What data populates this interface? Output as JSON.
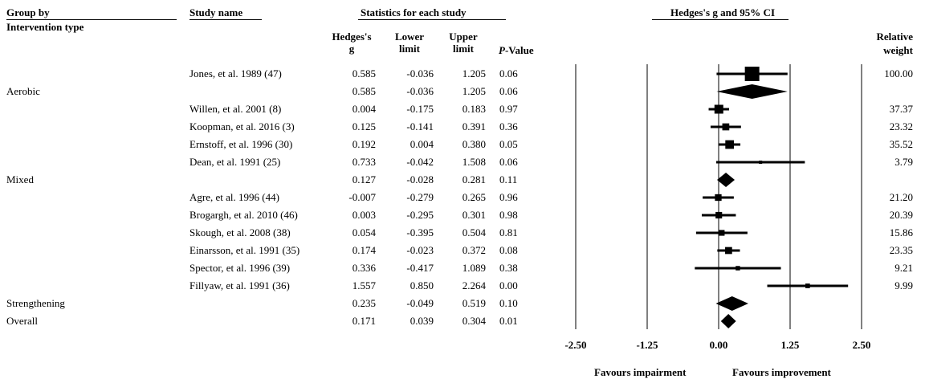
{
  "headers": {
    "group_by": "Group by",
    "intervention_type": "Intervention type",
    "study_name": "Study name",
    "statistics": "Statistics for each study",
    "hedges_line1": "Hedges's",
    "hedges_line2": "g",
    "lower_line1": "Lower",
    "lower_line2": "limit",
    "upper_line1": "Upper",
    "upper_line2": "limit",
    "p_letter": "P",
    "p_rest": "-Value",
    "plot_title": "Hedges's g and 95% CI",
    "weight_line1": "Relative",
    "weight_line2": "weight"
  },
  "favours": {
    "left": "Favours impairment",
    "right": "Favours improvement"
  },
  "chart_data": {
    "type": "forest",
    "title": "Hedges's g and 95% CI",
    "xlabel": "",
    "xlim": [
      -2.5,
      2.5
    ],
    "xticks": [
      "-2.50",
      "-1.25",
      "0.00",
      "1.25",
      "2.50"
    ],
    "tick_values": [
      -2.5,
      -1.25,
      0,
      1.25,
      2.5
    ],
    "grid": false,
    "rows": [
      {
        "kind": "study",
        "group": "",
        "study": "Jones, et al. 1989 (47)",
        "g": "0.585",
        "lower": "-0.036",
        "upper": "1.205",
        "p": "0.06",
        "weight": "100.00",
        "gv": 0.585,
        "lv": -0.036,
        "uv": 1.205,
        "wv": 100.0
      },
      {
        "kind": "summary",
        "group": "Aerobic",
        "study": "",
        "g": "0.585",
        "lower": "-0.036",
        "upper": "1.205",
        "p": "0.06",
        "weight": "",
        "gv": 0.585,
        "lv": -0.036,
        "uv": 1.205
      },
      {
        "kind": "study",
        "group": "",
        "study": "Willen, et al. 2001 (8)",
        "g": "0.004",
        "lower": "-0.175",
        "upper": "0.183",
        "p": "0.97",
        "weight": "37.37",
        "gv": 0.004,
        "lv": -0.175,
        "uv": 0.183,
        "wv": 37.37
      },
      {
        "kind": "study",
        "group": "",
        "study": "Koopman, et al. 2016 (3)",
        "g": "0.125",
        "lower": "-0.141",
        "upper": "0.391",
        "p": "0.36",
        "weight": "23.32",
        "gv": 0.125,
        "lv": -0.141,
        "uv": 0.391,
        "wv": 23.32
      },
      {
        "kind": "study",
        "group": "",
        "study": "Ernstoff, et al. 1996 (30)",
        "g": "0.192",
        "lower": "0.004",
        "upper": "0.380",
        "p": "0.05",
        "weight": "35.52",
        "gv": 0.192,
        "lv": 0.004,
        "uv": 0.38,
        "wv": 35.52
      },
      {
        "kind": "study",
        "group": "",
        "study": "Dean, et al. 1991 (25)",
        "g": "0.733",
        "lower": "-0.042",
        "upper": "1.508",
        "p": "0.06",
        "weight": "3.79",
        "gv": 0.733,
        "lv": -0.042,
        "uv": 1.508,
        "wv": 3.79
      },
      {
        "kind": "summary",
        "group": "Mixed",
        "study": "",
        "g": "0.127",
        "lower": "-0.028",
        "upper": "0.281",
        "p": "0.11",
        "weight": "",
        "gv": 0.127,
        "lv": -0.028,
        "uv": 0.281
      },
      {
        "kind": "study",
        "group": "",
        "study": "Agre, et al. 1996 (44)",
        "g": "-0.007",
        "lower": "-0.279",
        "upper": "0.265",
        "p": "0.96",
        "weight": "21.20",
        "gv": -0.007,
        "lv": -0.279,
        "uv": 0.265,
        "wv": 21.2
      },
      {
        "kind": "study",
        "group": "",
        "study": "Brogargh, et al. 2010 (46)",
        "g": "0.003",
        "lower": "-0.295",
        "upper": "0.301",
        "p": "0.98",
        "weight": "20.39",
        "gv": 0.003,
        "lv": -0.295,
        "uv": 0.301,
        "wv": 20.39
      },
      {
        "kind": "study",
        "group": "",
        "study": "Skough, et al. 2008 (38)",
        "g": "0.054",
        "lower": "-0.395",
        "upper": "0.504",
        "p": "0.81",
        "weight": "15.86",
        "gv": 0.054,
        "lv": -0.395,
        "uv": 0.504,
        "wv": 15.86
      },
      {
        "kind": "study",
        "group": "",
        "study": "Einarsson, et al. 1991 (35)",
        "g": "0.174",
        "lower": "-0.023",
        "upper": "0.372",
        "p": "0.08",
        "weight": "23.35",
        "gv": 0.174,
        "lv": -0.023,
        "uv": 0.372,
        "wv": 23.35
      },
      {
        "kind": "study",
        "group": "",
        "study": "Spector, et al. 1996 (39)",
        "g": "0.336",
        "lower": "-0.417",
        "upper": "1.089",
        "p": "0.38",
        "weight": "9.21",
        "gv": 0.336,
        "lv": -0.417,
        "uv": 1.089,
        "wv": 9.21
      },
      {
        "kind": "study",
        "group": "",
        "study": "Fillyaw, et al. 1991 (36)",
        "g": "1.557",
        "lower": "0.850",
        "upper": "2.264",
        "p": "0.00",
        "weight": "9.99",
        "gv": 1.557,
        "lv": 0.85,
        "uv": 2.264,
        "wv": 9.99
      },
      {
        "kind": "summary",
        "group": "Strengthening",
        "study": "",
        "g": "0.235",
        "lower": "-0.049",
        "upper": "0.519",
        "p": "0.10",
        "weight": "",
        "gv": 0.235,
        "lv": -0.049,
        "uv": 0.519
      },
      {
        "kind": "summary",
        "group": "Overall",
        "study": "",
        "g": "0.171",
        "lower": "0.039",
        "upper": "0.304",
        "p": "0.01",
        "weight": "",
        "gv": 0.171,
        "lv": 0.039,
        "uv": 0.304
      }
    ]
  }
}
